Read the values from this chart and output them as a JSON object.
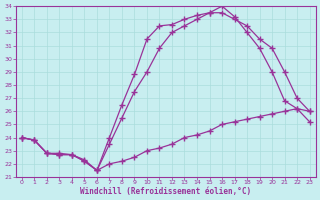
{
  "xlabel": "Windchill (Refroidissement éolien,°C)",
  "background_color": "#c8eef0",
  "line_color": "#993399",
  "grid_color": "#aadddd",
  "xlim": [
    -0.5,
    23.5
  ],
  "ylim": [
    21,
    34
  ],
  "yticks": [
    21,
    22,
    23,
    24,
    25,
    26,
    27,
    28,
    29,
    30,
    31,
    32,
    33,
    34
  ],
  "xticks": [
    0,
    1,
    2,
    3,
    4,
    5,
    6,
    7,
    8,
    9,
    10,
    11,
    12,
    13,
    14,
    15,
    16,
    17,
    18,
    19,
    20,
    21,
    22,
    23
  ],
  "line1_x": [
    0,
    1,
    2,
    3,
    4,
    5,
    6,
    7,
    8,
    9,
    10,
    11,
    12,
    13,
    14,
    15,
    16,
    17,
    18,
    19,
    20,
    21,
    22,
    23
  ],
  "line1_y": [
    24.0,
    23.8,
    22.8,
    22.7,
    22.7,
    22.2,
    21.5,
    22.0,
    22.2,
    22.5,
    23.0,
    23.2,
    23.5,
    24.0,
    24.2,
    24.5,
    25.0,
    25.2,
    25.4,
    25.6,
    25.8,
    26.0,
    26.2,
    26.0
  ],
  "line2_x": [
    0,
    1,
    2,
    3,
    4,
    5,
    6,
    7,
    8,
    9,
    10,
    11,
    12,
    13,
    14,
    15,
    16,
    17,
    18,
    19,
    20,
    21,
    22,
    23
  ],
  "line2_y": [
    24.0,
    23.8,
    22.8,
    22.7,
    22.7,
    22.2,
    21.5,
    23.5,
    25.5,
    27.5,
    29.0,
    30.8,
    32.0,
    32.5,
    33.0,
    33.5,
    34.0,
    33.2,
    32.0,
    30.8,
    29.0,
    26.8,
    26.2,
    25.2
  ],
  "line3_x": [
    0,
    1,
    2,
    3,
    4,
    5,
    6,
    7,
    8,
    9,
    10,
    11,
    12,
    13,
    14,
    15,
    16,
    17,
    18,
    19,
    20,
    21,
    22,
    23
  ],
  "line3_y": [
    24.0,
    23.8,
    22.8,
    22.8,
    22.7,
    22.3,
    21.5,
    24.0,
    26.5,
    28.8,
    31.5,
    32.5,
    32.6,
    33.0,
    33.3,
    33.5,
    33.5,
    33.0,
    32.5,
    31.5,
    30.8,
    29.0,
    27.0,
    26.0
  ]
}
